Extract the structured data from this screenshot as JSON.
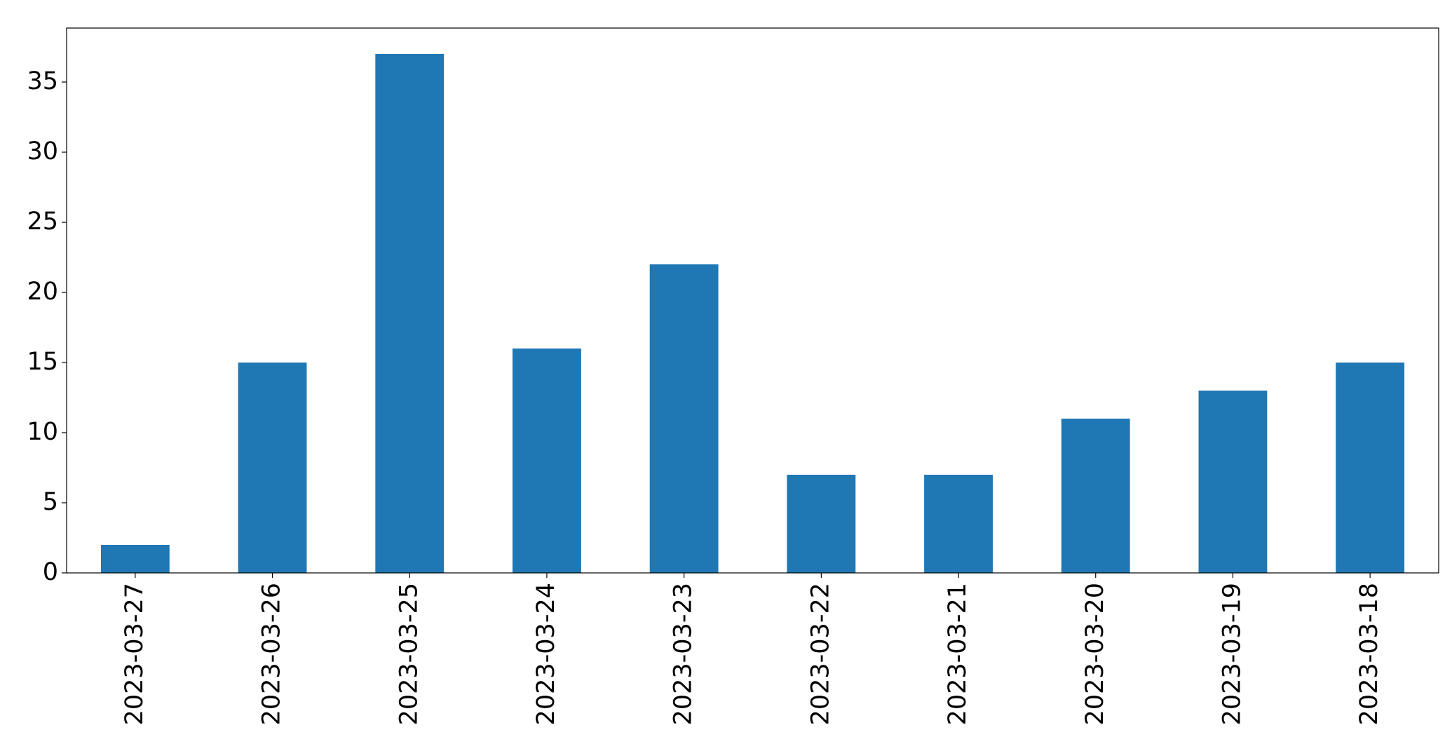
{
  "chart_data": {
    "type": "bar",
    "categories": [
      "2023-03-27",
      "2023-03-26",
      "2023-03-25",
      "2023-03-24",
      "2023-03-23",
      "2023-03-22",
      "2023-03-21",
      "2023-03-20",
      "2023-03-19",
      "2023-03-18"
    ],
    "values": [
      2,
      15,
      37,
      16,
      22,
      7,
      7,
      11,
      13,
      15
    ],
    "color": "#1f77b4",
    "ylim": [
      0,
      38.85
    ],
    "yticks": [
      0,
      5,
      10,
      15,
      20,
      25,
      30,
      35
    ],
    "grid": false
  }
}
